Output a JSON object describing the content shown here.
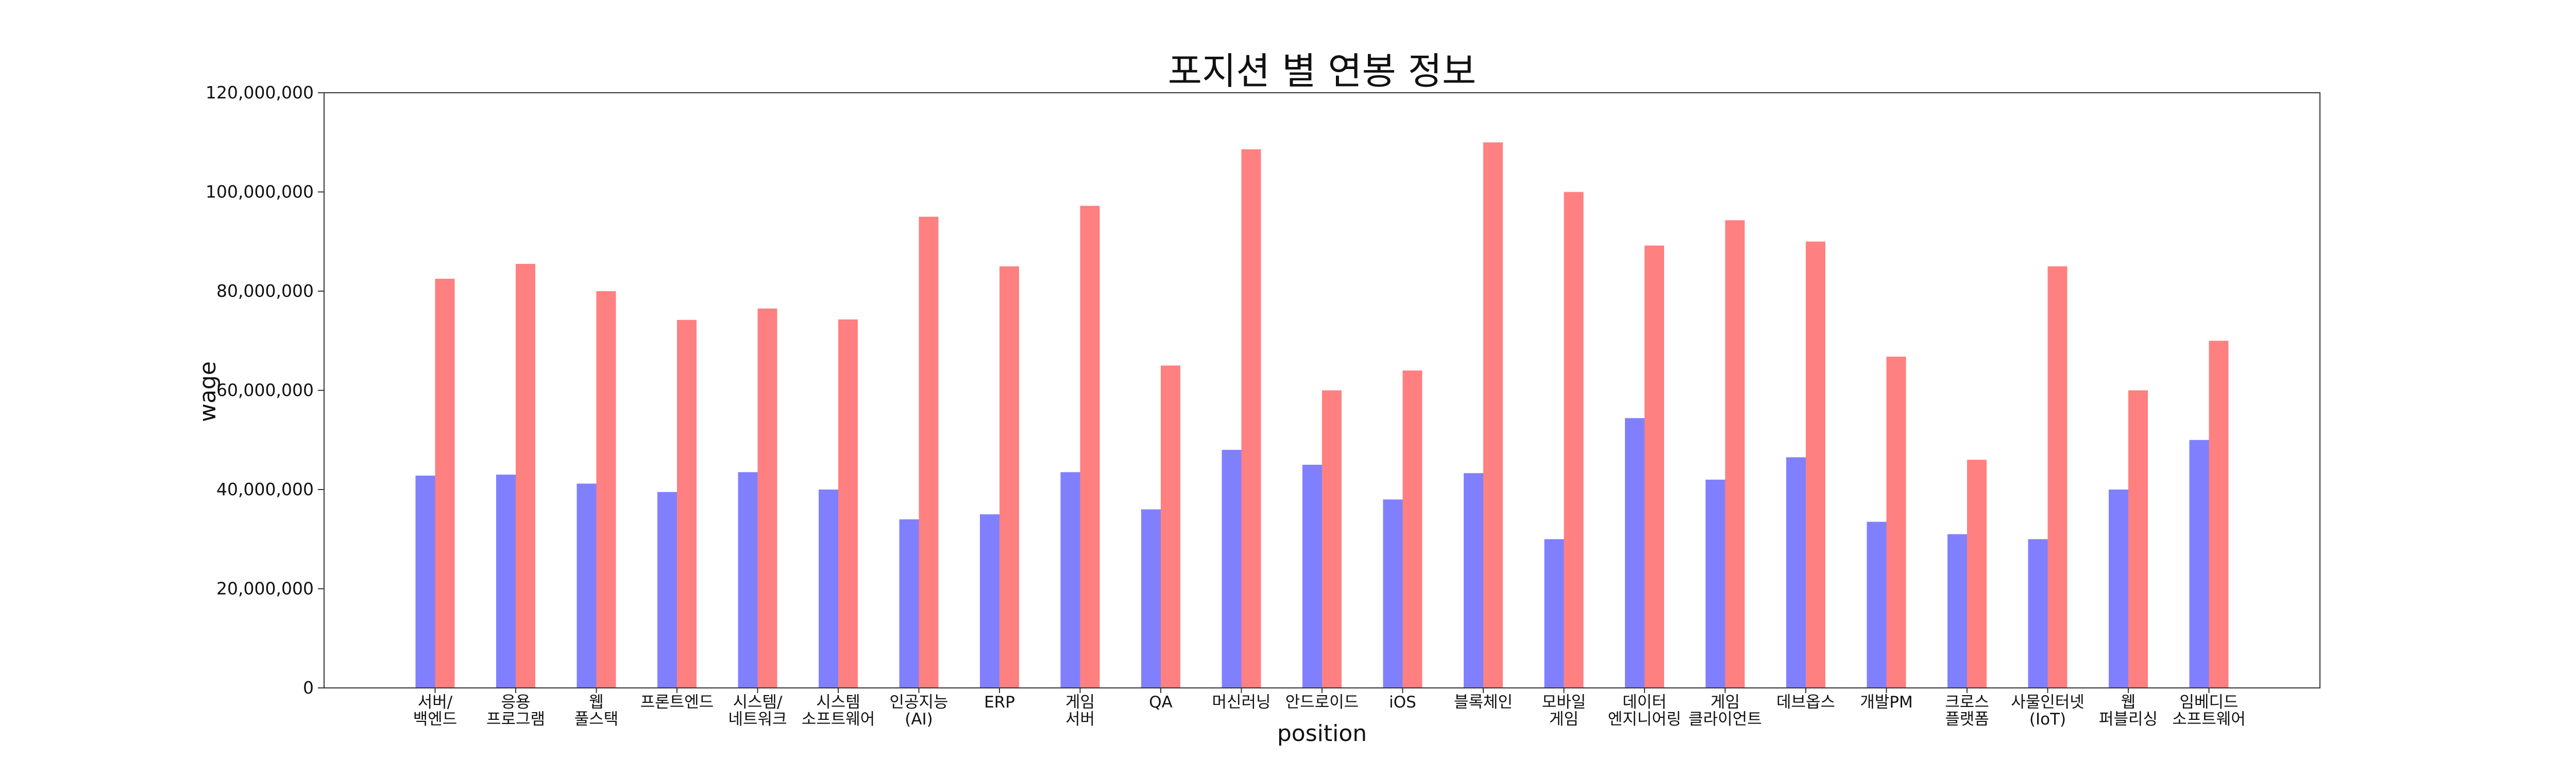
{
  "chart_data": {
    "type": "bar",
    "title": "포지션 별 연봉 정보",
    "xlabel": "position",
    "ylabel": "wage",
    "ylim": [
      0,
      120000000
    ],
    "yticks": [
      0,
      20000000,
      40000000,
      60000000,
      80000000,
      100000000,
      120000000
    ],
    "ytick_labels": [
      "0",
      "20,000,000",
      "40,000,000",
      "60,000,000",
      "80,000,000",
      "100,000,000",
      "120,000,000"
    ],
    "grid": false,
    "legend": null,
    "categories": [
      [
        "서버/",
        "백엔드"
      ],
      [
        "응용",
        "프로그램"
      ],
      [
        "웹",
        "풀스택"
      ],
      [
        "프론트엔드"
      ],
      [
        "시스템/",
        "네트워크"
      ],
      [
        "시스템",
        "소프트웨어"
      ],
      [
        "인공지능",
        "(AI)"
      ],
      [
        "ERP"
      ],
      [
        "게임",
        "서버"
      ],
      [
        "QA"
      ],
      [
        "머신러닝"
      ],
      [
        "안드로이드"
      ],
      [
        "iOS"
      ],
      [
        "블록체인"
      ],
      [
        "모바일",
        "게임"
      ],
      [
        "데이터",
        "엔지니어링"
      ],
      [
        "게임",
        "클라이언트"
      ],
      [
        "데브옵스"
      ],
      [
        "개발PM"
      ],
      [
        "크로스",
        "플랫폼"
      ],
      [
        "사물인터넷",
        "(IoT)"
      ],
      [
        "웹",
        "퍼블리싱"
      ],
      [
        "임베디드",
        "소프트웨어"
      ]
    ],
    "series": [
      {
        "color": "#8080ff",
        "values": [
          42800000,
          43000000,
          41200000,
          39500000,
          43500000,
          40000000,
          34000000,
          35000000,
          43500000,
          36000000,
          48000000,
          45000000,
          38000000,
          43300000,
          30000000,
          54400000,
          42000000,
          46500000,
          33500000,
          31000000,
          30000000,
          40000000,
          50000000
        ]
      },
      {
        "color": "#ff8080",
        "values": [
          82500000,
          85500000,
          80000000,
          74200000,
          76500000,
          74300000,
          95000000,
          85000000,
          97200000,
          65000000,
          108600000,
          60000000,
          64000000,
          110000000,
          100000000,
          89200000,
          94300000,
          90000000,
          66800000,
          46000000,
          85000000,
          60000000,
          70000000
        ]
      }
    ]
  }
}
